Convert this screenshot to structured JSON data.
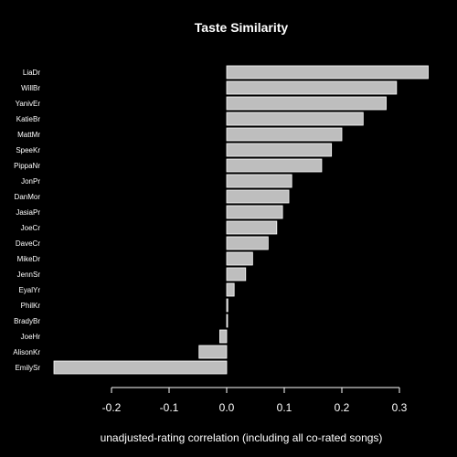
{
  "chart_data": {
    "type": "bar",
    "orientation": "horizontal",
    "title": "Taste Similarity",
    "xlabel": "unadjusted-rating correlation (including all co-rated songs)",
    "ylabel": "",
    "categories": [
      "LiaDr",
      "WillBr",
      "YanivEr",
      "KatieBr",
      "MattMr",
      "SpeeKr",
      "PippaNr",
      "JonPr",
      "DanMor",
      "JasiaPr",
      "JoeCr",
      "DaveCr",
      "MikeDr",
      "JennSr",
      "EyalYr",
      "PhilKr",
      "BradyBr",
      "JoeHr",
      "AlisonKr",
      "EmilySr"
    ],
    "values": [
      0.35,
      0.295,
      0.277,
      0.237,
      0.2,
      0.182,
      0.165,
      0.113,
      0.108,
      0.097,
      0.087,
      0.072,
      0.045,
      0.033,
      0.013,
      0.002,
      0.001,
      -0.012,
      -0.048,
      -0.3
    ],
    "xlim": [
      -0.3,
      0.35
    ],
    "xticks": [
      -0.2,
      -0.1,
      0.0,
      0.1,
      0.2,
      0.3
    ],
    "xtick_labels": [
      "-0.2",
      "-0.1",
      "0.0",
      "0.1",
      "0.2",
      "0.3"
    ],
    "bar_color": "#bebebe",
    "bar_border_color": "#ffffff",
    "background": "#000000",
    "text_color": "#ffffff",
    "grid": false,
    "legend": "none"
  }
}
